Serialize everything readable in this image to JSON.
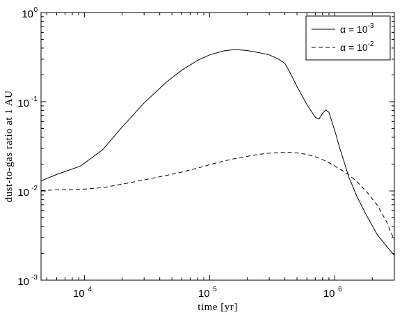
{
  "chart_data": {
    "type": "line",
    "title": "",
    "xlabel": "time [yr]",
    "ylabel": "dust-to-gas ratio at 1 AU",
    "x_scale": "log",
    "y_scale": "log",
    "xlim": [
      4500,
      3000000
    ],
    "ylim": [
      0.001,
      1
    ],
    "grid": false,
    "legend_position": "top-right",
    "x_ticks": [
      {
        "value": 10000,
        "base": "10",
        "exp": "4"
      },
      {
        "value": 100000,
        "base": "10",
        "exp": "5"
      },
      {
        "value": 1000000,
        "base": "10",
        "exp": "6"
      }
    ],
    "y_ticks": [
      {
        "value": 0.001,
        "base": "10",
        "exp": "-3"
      },
      {
        "value": 0.01,
        "base": "10",
        "exp": "-2"
      },
      {
        "value": 0.1,
        "base": "10",
        "exp": "-1"
      },
      {
        "value": 1,
        "base": "10",
        "exp": "0"
      }
    ],
    "series": [
      {
        "name_prefix": "α = 10",
        "name_exp": "-3",
        "style": "solid",
        "color": "#000000",
        "x": [
          4500,
          6000,
          9300,
          14000,
          20000,
          30000,
          45000,
          60000,
          80000,
          100000,
          130000,
          160000,
          200000,
          250000,
          300000,
          350000,
          400000,
          450000,
          500000,
          600000,
          700000,
          750000,
          800000,
          850000,
          900000,
          1000000,
          1100000,
          1200000,
          1300000,
          1500000,
          1800000,
          2200000,
          2600000,
          3000000
        ],
        "y": [
          0.013,
          0.0153,
          0.019,
          0.029,
          0.052,
          0.097,
          0.165,
          0.226,
          0.29,
          0.335,
          0.372,
          0.385,
          0.375,
          0.355,
          0.335,
          0.305,
          0.27,
          0.2,
          0.148,
          0.093,
          0.067,
          0.064,
          0.074,
          0.081,
          0.076,
          0.048,
          0.03,
          0.0205,
          0.0142,
          0.0088,
          0.0053,
          0.0032,
          0.0024,
          0.0019
        ]
      },
      {
        "name_prefix": "α = 10",
        "name_exp": "-2",
        "style": "dashed",
        "color": "#000000",
        "x": [
          4500,
          6000,
          9300,
          14000,
          20000,
          30000,
          45000,
          60000,
          80000,
          100000,
          130000,
          160000,
          200000,
          250000,
          300000,
          350000,
          400000,
          450000,
          500000,
          600000,
          700000,
          800000,
          900000,
          1000000,
          1100000,
          1200000,
          1300000,
          1500000,
          1800000,
          2200000,
          2600000,
          3000000
        ],
        "y": [
          0.0101,
          0.0103,
          0.0104,
          0.0109,
          0.0119,
          0.0133,
          0.0149,
          0.0163,
          0.018,
          0.0197,
          0.0216,
          0.0231,
          0.0244,
          0.0258,
          0.0265,
          0.0269,
          0.027,
          0.027,
          0.0267,
          0.0257,
          0.0242,
          0.0225,
          0.0207,
          0.0191,
          0.0176,
          0.0163,
          0.0151,
          0.0128,
          0.0098,
          0.0069,
          0.0045,
          0.0028
        ]
      }
    ]
  }
}
